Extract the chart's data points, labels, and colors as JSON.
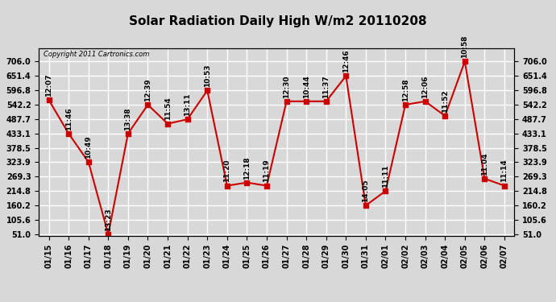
{
  "title": "Solar Radiation Daily High W/m2 20110208",
  "copyright": "Copyright 2011 Cartronics.com",
  "dates": [
    "01/15",
    "01/16",
    "01/17",
    "01/18",
    "01/19",
    "01/20",
    "01/21",
    "01/22",
    "01/23",
    "01/24",
    "01/25",
    "01/26",
    "01/27",
    "01/28",
    "01/29",
    "01/30",
    "01/31",
    "02/01",
    "02/02",
    "02/03",
    "02/04",
    "02/05",
    "02/06",
    "02/07"
  ],
  "values": [
    560,
    433,
    325,
    51,
    433,
    542,
    470,
    487,
    596,
    235,
    247,
    235,
    555,
    555,
    555,
    651,
    160,
    215,
    542,
    555,
    500,
    706,
    262,
    235
  ],
  "labels": [
    "12:07",
    "11:46",
    "10:49",
    "13:23",
    "13:38",
    "12:39",
    "11:54",
    "13:11",
    "10:53",
    "11:20",
    "12:18",
    "11:19",
    "12:30",
    "10:44",
    "11:37",
    "12:46",
    "14:05",
    "11:11",
    "12:58",
    "12:06",
    "11:52",
    "10:58",
    "11:04",
    "11:14"
  ],
  "y_min": 51.0,
  "y_max": 706.0,
  "y_ticks": [
    51.0,
    105.6,
    160.2,
    214.8,
    269.3,
    323.9,
    378.5,
    433.1,
    487.7,
    542.2,
    596.8,
    651.4,
    706.0
  ],
  "line_color": "#cc0000",
  "marker_color": "#cc0000",
  "bg_color": "#d8d8d8",
  "grid_color": "#ffffff",
  "title_fontsize": 11,
  "label_fontsize": 6.5,
  "tick_fontsize": 7.0
}
